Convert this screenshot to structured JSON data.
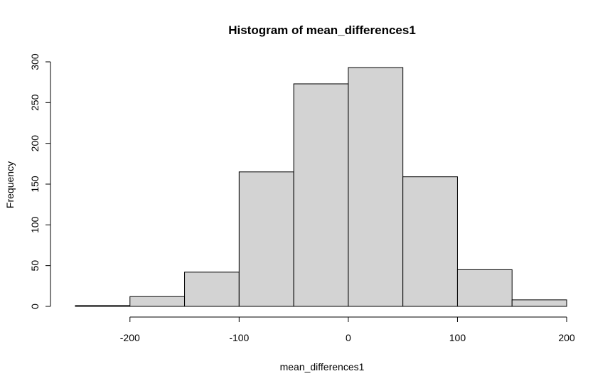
{
  "chart_data": {
    "type": "bar",
    "title": "Histogram of mean_differences1",
    "xlabel": "mean_differences1",
    "ylabel": "Frequency",
    "bins": [
      {
        "start": -250,
        "end": -200,
        "count": 1
      },
      {
        "start": -200,
        "end": -150,
        "count": 12
      },
      {
        "start": -150,
        "end": -100,
        "count": 42
      },
      {
        "start": -100,
        "end": -50,
        "count": 165
      },
      {
        "start": -50,
        "end": 0,
        "count": 273
      },
      {
        "start": 0,
        "end": 50,
        "count": 293
      },
      {
        "start": 50,
        "end": 100,
        "count": 159
      },
      {
        "start": 100,
        "end": 150,
        "count": 45
      },
      {
        "start": 150,
        "end": 200,
        "count": 8
      }
    ],
    "xlim": [
      -250,
      200
    ],
    "ylim": [
      0,
      300
    ],
    "xticks": [
      -200,
      -100,
      0,
      100,
      200
    ],
    "yticks": [
      0,
      50,
      100,
      150,
      200,
      250,
      300
    ],
    "bar_fill": "#d3d3d3",
    "bar_stroke": "#000000",
    "grid": false,
    "legend": false
  }
}
